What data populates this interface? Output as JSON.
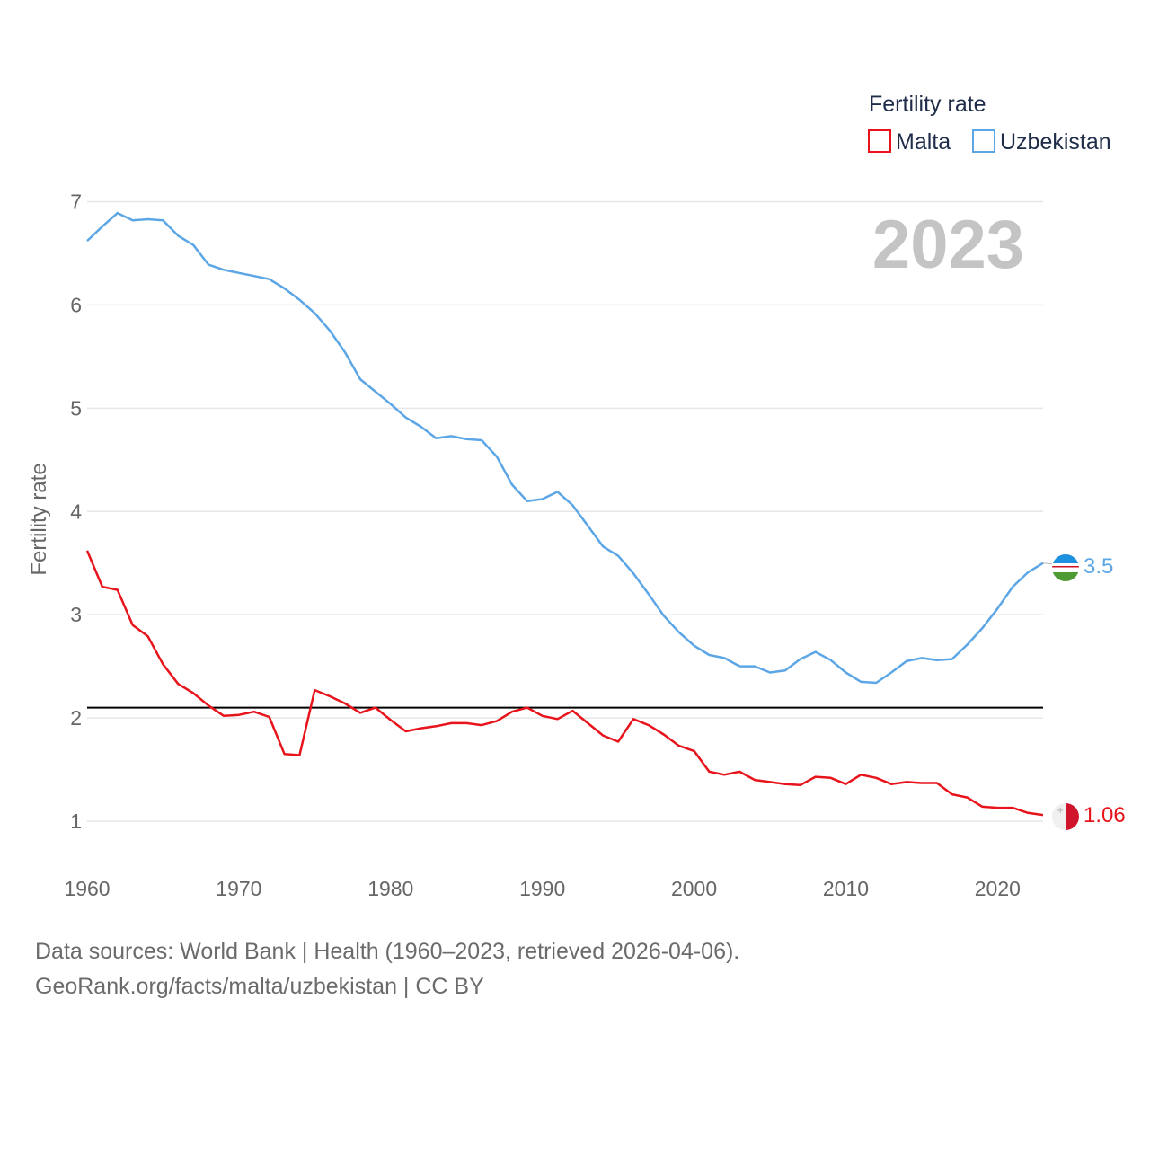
{
  "chart_data": {
    "type": "line",
    "title": "",
    "xlabel": "",
    "ylabel": "Fertility rate",
    "year_label": "2023",
    "xlim": [
      1960,
      2023
    ],
    "ylim": [
      0.6,
      7.3
    ],
    "x_ticks": [
      1960,
      1970,
      1980,
      1990,
      2000,
      2010,
      2020
    ],
    "y_ticks": [
      1,
      2,
      3,
      4,
      5,
      6,
      7
    ],
    "grid": true,
    "reference_line": 2.1,
    "legend": {
      "title": "Fertility rate",
      "placement": "top-right",
      "items": [
        "Malta",
        "Uzbekistan"
      ]
    },
    "x": [
      1960,
      1961,
      1962,
      1963,
      1964,
      1965,
      1966,
      1967,
      1968,
      1969,
      1970,
      1971,
      1972,
      1973,
      1974,
      1975,
      1976,
      1977,
      1978,
      1979,
      1980,
      1981,
      1982,
      1983,
      1984,
      1985,
      1986,
      1987,
      1988,
      1989,
      1990,
      1991,
      1992,
      1993,
      1994,
      1995,
      1996,
      1997,
      1998,
      1999,
      2000,
      2001,
      2002,
      2003,
      2004,
      2005,
      2006,
      2007,
      2008,
      2009,
      2010,
      2011,
      2012,
      2013,
      2014,
      2015,
      2016,
      2017,
      2018,
      2019,
      2020,
      2021,
      2022,
      2023
    ],
    "series": [
      {
        "name": "Malta",
        "color": "#e8141c",
        "end_label": "1.06",
        "values": [
          3.62,
          3.27,
          3.24,
          2.9,
          2.79,
          2.52,
          2.33,
          2.24,
          2.12,
          2.02,
          2.03,
          2.06,
          2.01,
          1.65,
          1.64,
          2.27,
          2.21,
          2.14,
          2.05,
          2.1,
          1.98,
          1.87,
          1.9,
          1.92,
          1.95,
          1.95,
          1.93,
          1.97,
          2.06,
          2.1,
          2.02,
          1.99,
          2.07,
          1.95,
          1.83,
          1.77,
          1.99,
          1.93,
          1.84,
          1.73,
          1.68,
          1.48,
          1.45,
          1.48,
          1.4,
          1.38,
          1.36,
          1.35,
          1.43,
          1.42,
          1.36,
          1.45,
          1.42,
          1.36,
          1.38,
          1.37,
          1.37,
          1.26,
          1.23,
          1.14,
          1.13,
          1.13,
          1.08,
          1.06
        ]
      },
      {
        "name": "Uzbekistan",
        "color": "#5ca6e6",
        "end_label": "3.5",
        "values": [
          6.62,
          6.76,
          6.89,
          6.82,
          6.83,
          6.82,
          6.67,
          6.58,
          6.39,
          6.34,
          6.31,
          6.28,
          6.25,
          6.16,
          6.05,
          5.92,
          5.75,
          5.54,
          5.28,
          5.16,
          5.04,
          4.91,
          4.82,
          4.71,
          4.73,
          4.7,
          4.69,
          4.53,
          4.26,
          4.1,
          4.12,
          4.19,
          4.06,
          3.86,
          3.66,
          3.57,
          3.4,
          3.2,
          2.99,
          2.83,
          2.7,
          2.61,
          2.58,
          2.5,
          2.5,
          2.44,
          2.46,
          2.57,
          2.64,
          2.56,
          2.44,
          2.35,
          2.34,
          2.44,
          2.55,
          2.58,
          2.56,
          2.57,
          2.71,
          2.87,
          3.06,
          3.27,
          3.41,
          3.5
        ]
      }
    ]
  },
  "footer": {
    "line1": "Data sources: World Bank | Health (1960–2023, retrieved 2026-04-06).",
    "line2": "GeoRank.org/facts/malta/uzbekistan | CC BY"
  },
  "flags": {
    "uzbekistan_colors": [
      "#1e90e0",
      "#ffffff",
      "#ce1126",
      "#4d9b32"
    ],
    "malta_colors": [
      "#f0f0f0",
      "#cf142b"
    ]
  }
}
